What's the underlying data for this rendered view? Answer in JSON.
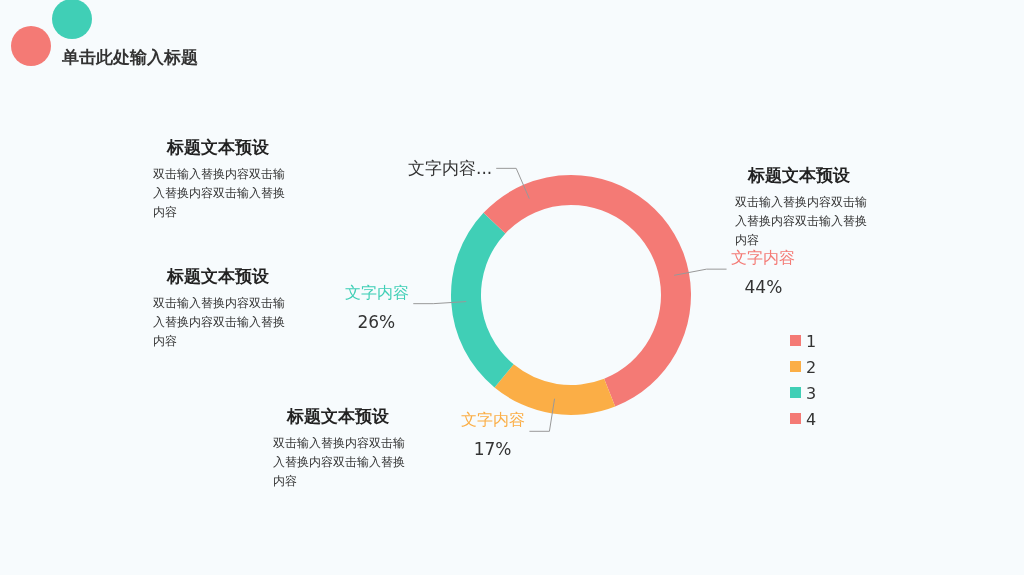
{
  "chart_data": {
    "type": "donut",
    "title": "单击此处输入标题",
    "categories": [
      "1",
      "2",
      "3",
      "4"
    ],
    "values": [
      44,
      17,
      26,
      13
    ],
    "colors": [
      "#f47a75",
      "#fbae46",
      "#40cfb6",
      "#f47a75"
    ],
    "value_labels": [
      "44%",
      "17%",
      "26%",
      null
    ],
    "legend": "right",
    "annotations": [
      {
        "text": "文字内容",
        "x": "1"
      },
      {
        "text": "文字内容",
        "x": "2"
      },
      {
        "text": "文字内容",
        "x": "3"
      },
      {
        "text": "文字内容...",
        "x": "4"
      },
      "标题文本预设",
      "双击输入替换内容双击输入替换内容双击输入替换内容",
      "标题文本预设",
      "双击输入替换内容双击输入替换内容双击输入替换内容",
      "标题文本预设",
      "双击输入替换内容双击输入替换内容双击输入替换内容",
      "标题文本预设",
      "双击输入替换内容双击输入替换内容双击输入替换内容"
    ]
  }
}
